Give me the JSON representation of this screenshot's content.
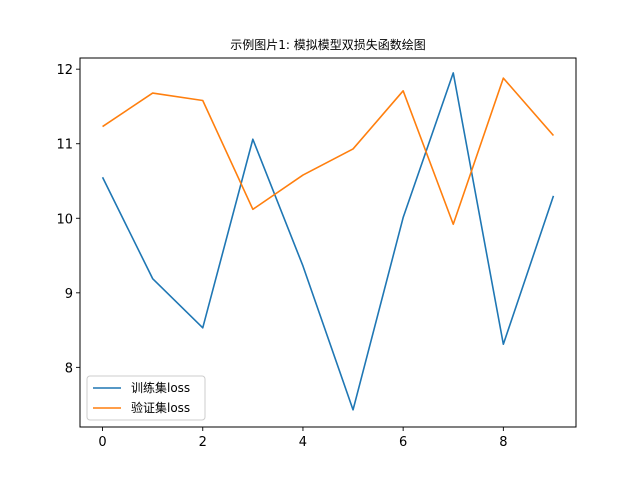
{
  "chart_data": {
    "type": "line",
    "title": "示例图片1: 模拟模型双损失函数绘图",
    "xlabel": "",
    "ylabel": "",
    "x": [
      0,
      1,
      2,
      3,
      4,
      5,
      6,
      7,
      8,
      9
    ],
    "xlim": [
      -0.45,
      9.45
    ],
    "ylim": [
      7.2,
      12.15
    ],
    "xticks": [
      0,
      2,
      4,
      6,
      8
    ],
    "yticks": [
      8,
      9,
      10,
      11,
      12
    ],
    "grid": false,
    "legend_position": "lower-left",
    "series": [
      {
        "name": "训练集loss",
        "color": "#1f77b4",
        "values": [
          10.55,
          9.19,
          8.53,
          11.06,
          9.36,
          7.43,
          10.01,
          11.95,
          8.31,
          10.3
        ]
      },
      {
        "name": "验证集loss",
        "color": "#ff7f0e",
        "values": [
          11.23,
          11.68,
          11.58,
          10.12,
          10.58,
          10.93,
          11.71,
          9.92,
          11.88,
          11.11
        ]
      }
    ]
  }
}
